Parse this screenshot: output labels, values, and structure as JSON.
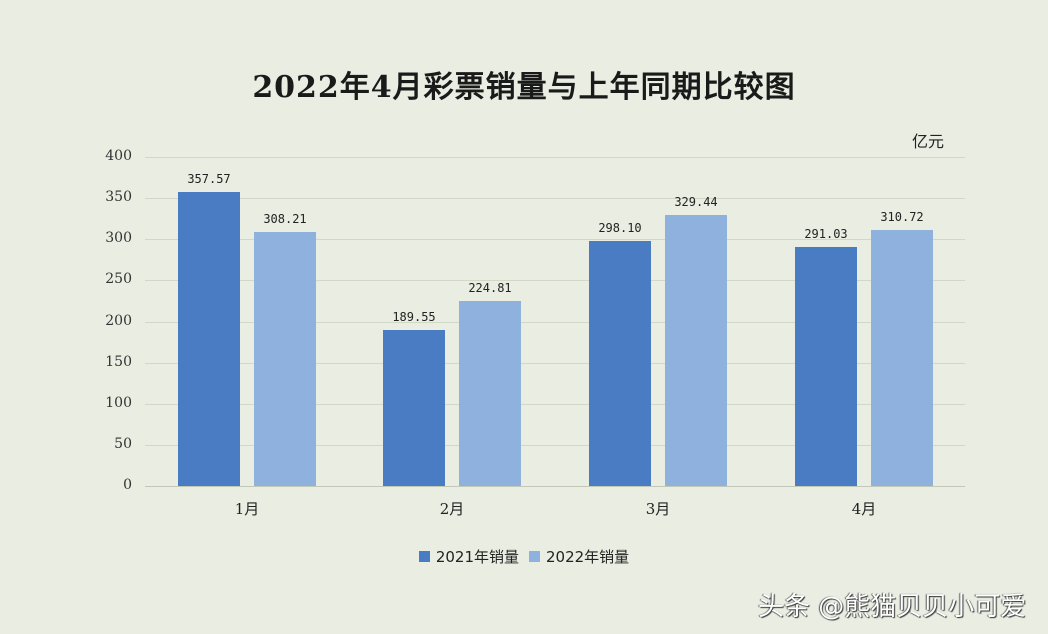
{
  "title": "2022年4月彩票销量与上年同期比较图",
  "unit": "亿元",
  "watermark": "头条 @熊猫贝贝小可爱",
  "colors": {
    "series_2021": "#4a7cc4",
    "series_2022": "#8fb1dd",
    "background": "#e9ede2"
  },
  "legend": [
    {
      "label": "2021年销量",
      "color": "#4a7cc4"
    },
    {
      "label": "2022年销量",
      "color": "#8fb1dd"
    }
  ],
  "chart_data": {
    "type": "bar",
    "title": "2022年4月彩票销量与上年同期比较图",
    "xlabel": "",
    "ylabel": "亿元",
    "ylim": [
      0,
      400
    ],
    "yticks": [
      0,
      50,
      100,
      150,
      200,
      250,
      300,
      350,
      400
    ],
    "grid": true,
    "legend_position": "bottom",
    "categories": [
      "1月",
      "2月",
      "3月",
      "4月"
    ],
    "series": [
      {
        "name": "2021年销量",
        "values": [
          357.57,
          189.55,
          298.1,
          291.03
        ],
        "labels": [
          "357.57",
          "189.55",
          "298.10",
          "291.03"
        ]
      },
      {
        "name": "2022年销量",
        "values": [
          308.21,
          224.81,
          329.44,
          310.72
        ],
        "labels": [
          "308.21",
          "224.81",
          "329.44",
          "310.72"
        ]
      }
    ]
  }
}
